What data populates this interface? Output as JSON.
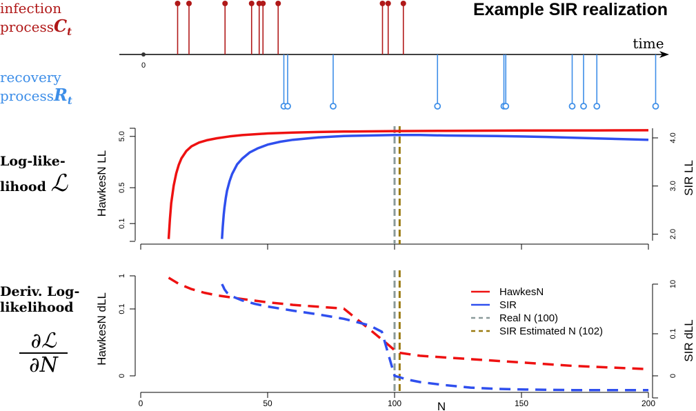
{
  "title": "Example SIR realization",
  "labels": {
    "infection_1": "infection",
    "infection_2": "process",
    "infection_sym": "C",
    "infection_sub": "t",
    "recovery_1": "recovery",
    "recovery_2": "process",
    "recovery_sym": "R",
    "recovery_sub": "t",
    "time_axis": "time",
    "time_zero": "0",
    "ll_1": "Log-like-",
    "ll_2": "lihood",
    "ll_sym": "ℒ",
    "dll_1": "Deriv. Log-",
    "dll_2": "likelihood",
    "dll_num": "∂ℒ",
    "dll_den": "∂N"
  },
  "colors": {
    "hawkes": "#ee1111",
    "sir": "#2f4fee",
    "real": "#8a9a9a",
    "estimated": "#9a7a10",
    "infection": "#b01818",
    "recovery": "#3d8ee8"
  },
  "chart_data": [
    {
      "type": "event",
      "title": "Example SIR realization",
      "xlabel": "time",
      "xticks": [
        "0"
      ],
      "series": [
        {
          "name": "infection process C_t",
          "times": [
            0.18,
            0.24,
            0.43,
            0.57,
            0.61,
            0.63,
            0.71,
            1.26,
            1.29,
            1.37
          ]
        },
        {
          "name": "recovery process R_t",
          "times": [
            0.74,
            0.76,
            1.0,
            1.55,
            1.9,
            1.91,
            2.26,
            2.32,
            2.39,
            2.7
          ]
        }
      ]
    },
    {
      "type": "line",
      "xlabel": "",
      "ylabel": "HawkesN LL",
      "ylabel_right": "SIR LL",
      "xlim": [
        0,
        200
      ],
      "xticks": [],
      "yticks_left": [
        "0.1",
        "0.5",
        "5.0"
      ],
      "yticks_left_values": [
        0.1,
        0.5,
        5.0
      ],
      "yticks_right": [
        "2.0",
        "3.0",
        "4.0"
      ],
      "yticks_right_values": [
        2.0,
        3.0,
        4.0
      ],
      "series": [
        {
          "name": "HawkesN",
          "axis": "left",
          "x": [
            11,
            11.5,
            12,
            13,
            14,
            15,
            16,
            18,
            20,
            23,
            26,
            30,
            35,
            40,
            50,
            60,
            70,
            80,
            100,
            120,
            150,
            180,
            200
          ],
          "y": [
            0.05,
            0.12,
            0.25,
            0.55,
            0.95,
            1.4,
            1.85,
            2.6,
            3.2,
            3.8,
            4.2,
            4.6,
            5.0,
            5.3,
            5.7,
            5.95,
            6.1,
            6.2,
            6.35,
            6.42,
            6.5,
            6.55,
            6.58
          ]
        },
        {
          "name": "SIR",
          "axis": "right",
          "x": [
            32,
            32.3,
            32.7,
            33,
            33.5,
            34,
            35,
            36,
            38,
            40,
            43,
            46,
            50,
            55,
            60,
            70,
            80,
            90,
            100,
            110,
            120,
            140,
            160,
            180,
            200
          ],
          "y": [
            1.9,
            2.15,
            2.4,
            2.55,
            2.75,
            2.9,
            3.1,
            3.25,
            3.45,
            3.57,
            3.7,
            3.78,
            3.86,
            3.92,
            3.96,
            4.01,
            4.04,
            4.05,
            4.06,
            4.06,
            4.05,
            4.04,
            4.02,
            3.99,
            3.96
          ]
        }
      ],
      "vlines": [
        {
          "name": "Real N (100)",
          "x": 100
        },
        {
          "name": "SIR Estimated N (102)",
          "x": 102
        }
      ]
    },
    {
      "type": "line",
      "xlabel": "N",
      "ylabel": "HawkesN dLL",
      "ylabel_right": "SIR dLL",
      "xlim": [
        0,
        200
      ],
      "xticks": [
        "0",
        "50",
        "100",
        "150",
        "200"
      ],
      "xticks_values": [
        0,
        50,
        100,
        150,
        200
      ],
      "yticks_left": [
        "0",
        "0.1",
        "1"
      ],
      "yticks_right": [
        "0",
        "0.1",
        "10"
      ],
      "legend": {
        "position": "top-right",
        "entries": [
          "HawkesN",
          "SIR",
          "Real N (100)",
          "SIR Estimated N (102)"
        ]
      },
      "series": [
        {
          "name": "HawkesN",
          "axis": "left",
          "style": "dashed",
          "x": [
            11,
            15,
            20,
            25,
            30,
            40,
            50,
            60,
            70,
            80,
            90,
            98,
            101,
            110,
            130,
            150,
            170,
            200
          ],
          "y": [
            0.95,
            0.78,
            0.64,
            0.54,
            0.47,
            0.37,
            0.28,
            0.21,
            0.16,
            0.11,
            0.07,
            0.045,
            0.035,
            0.03,
            0.025,
            0.02,
            0.015,
            0.01
          ]
        },
        {
          "name": "SIR",
          "axis": "right",
          "style": "dashed",
          "x": [
            32,
            32.5,
            33,
            34,
            36,
            40,
            45,
            50,
            60,
            70,
            80,
            90,
            95,
            100,
            105,
            110,
            120,
            130,
            140,
            150,
            170,
            200
          ],
          "y": [
            10,
            8.0,
            6.2,
            4.5,
            3.2,
            2.2,
            1.6,
            1.25,
            0.85,
            0.6,
            0.4,
            0.22,
            0.12,
            0.0,
            -0.06,
            -0.1,
            -0.15,
            -0.19,
            -0.21,
            -0.22,
            -0.23,
            -0.23
          ]
        }
      ],
      "vlines": [
        {
          "name": "Real N (100)",
          "x": 100
        },
        {
          "name": "SIR Estimated N (102)",
          "x": 102
        }
      ]
    }
  ]
}
